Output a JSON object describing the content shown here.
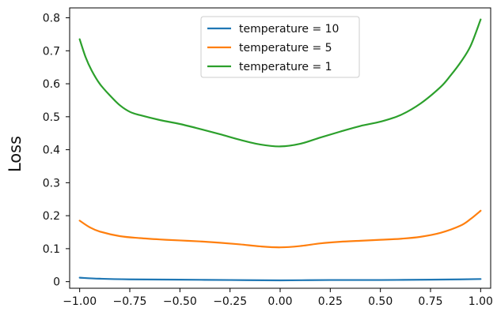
{
  "chart_data": {
    "type": "line",
    "title": "",
    "xlabel": "",
    "ylabel": "Loss",
    "xlim": [
      -1.05,
      1.05
    ],
    "ylim": [
      -0.02,
      0.83
    ],
    "xticks": [
      -1.0,
      -0.75,
      -0.5,
      -0.25,
      0.0,
      0.25,
      0.5,
      0.75,
      1.0
    ],
    "xtick_labels": [
      "−1.00",
      "−0.75",
      "−0.50",
      "−0.25",
      "0.00",
      "0.25",
      "0.50",
      "0.75",
      "1.00"
    ],
    "yticks": [
      0.0,
      0.1,
      0.2,
      0.3,
      0.4,
      0.5,
      0.6,
      0.7,
      0.8
    ],
    "ytick_labels": [
      "0",
      "0.1",
      "0.2",
      "0.3",
      "0.4",
      "0.5",
      "0.6",
      "0.7",
      "0.8"
    ],
    "grid": false,
    "legend_position": "top-center",
    "series": [
      {
        "name": "temperature = 10",
        "color": "#1f77b4",
        "x": [
          -1.0,
          -0.9,
          -0.75,
          -0.5,
          -0.25,
          0.0,
          0.25,
          0.5,
          0.75,
          0.9,
          1.0
        ],
        "y": [
          0.012,
          0.009,
          0.007,
          0.006,
          0.005,
          0.004,
          0.005,
          0.005,
          0.006,
          0.007,
          0.008
        ]
      },
      {
        "name": "temperature = 5",
        "color": "#ff7f0e",
        "x": [
          -1.0,
          -0.95,
          -0.9,
          -0.8,
          -0.7,
          -0.6,
          -0.5,
          -0.4,
          -0.3,
          -0.2,
          -0.1,
          0.0,
          0.1,
          0.2,
          0.3,
          0.4,
          0.5,
          0.6,
          0.7,
          0.8,
          0.9,
          0.95,
          1.0
        ],
        "y": [
          0.185,
          0.165,
          0.152,
          0.138,
          0.132,
          0.128,
          0.125,
          0.122,
          0.118,
          0.113,
          0.107,
          0.104,
          0.108,
          0.116,
          0.121,
          0.124,
          0.127,
          0.13,
          0.136,
          0.148,
          0.17,
          0.19,
          0.215
        ]
      },
      {
        "name": "temperature = 1",
        "color": "#2ca02c",
        "x": [
          -1.0,
          -0.97,
          -0.94,
          -0.9,
          -0.85,
          -0.8,
          -0.75,
          -0.7,
          -0.6,
          -0.5,
          -0.4,
          -0.3,
          -0.2,
          -0.1,
          0.0,
          0.1,
          0.2,
          0.3,
          0.4,
          0.5,
          0.6,
          0.7,
          0.8,
          0.85,
          0.9,
          0.95,
          1.0
        ],
        "y": [
          0.735,
          0.68,
          0.64,
          0.6,
          0.565,
          0.535,
          0.515,
          0.505,
          0.49,
          0.478,
          0.463,
          0.447,
          0.43,
          0.416,
          0.41,
          0.418,
          0.437,
          0.455,
          0.472,
          0.485,
          0.505,
          0.54,
          0.59,
          0.625,
          0.665,
          0.715,
          0.795
        ]
      }
    ]
  }
}
